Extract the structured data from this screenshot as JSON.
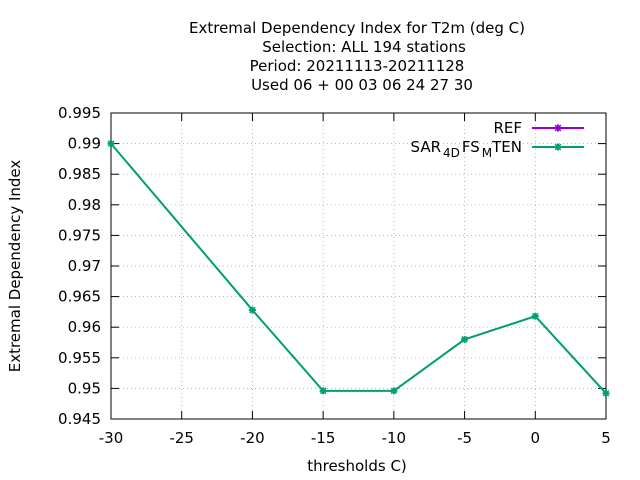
{
  "chart_data": {
    "type": "line",
    "title_lines": [
      "Extremal Dependency Index  for T2m (deg C)",
      "Selection: ALL    194 stations",
      "Period: 20211113-20211128",
      "Used  06 + 00 03 06 24 27 30"
    ],
    "xlabel": "thresholds C)",
    "ylabel": "Extremal Dependency Index",
    "xlim": [
      -30,
      5
    ],
    "ylim": [
      0.945,
      0.995
    ],
    "x_ticks": [
      "-30",
      "-25",
      "-20",
      "-15",
      "-10",
      "-5",
      "0",
      "5"
    ],
    "y_ticks": [
      "0.945",
      "0.95",
      "0.955",
      "0.96",
      "0.965",
      "0.97",
      "0.975",
      "0.98",
      "0.985",
      "0.99",
      "0.995"
    ],
    "grid": true,
    "legend_position": "top-right",
    "series": [
      {
        "name": "REF",
        "color": "#9400d3",
        "x": [],
        "y": []
      },
      {
        "name_parts": [
          "SAR",
          "4D",
          "FS",
          "M",
          "TEN"
        ],
        "color": "#009e73",
        "x": [
          -30,
          -20,
          -15,
          -10,
          -5,
          0,
          5
        ],
        "y": [
          0.99,
          0.9628,
          0.9496,
          0.9496,
          0.958,
          0.9618,
          0.9492
        ]
      }
    ]
  }
}
